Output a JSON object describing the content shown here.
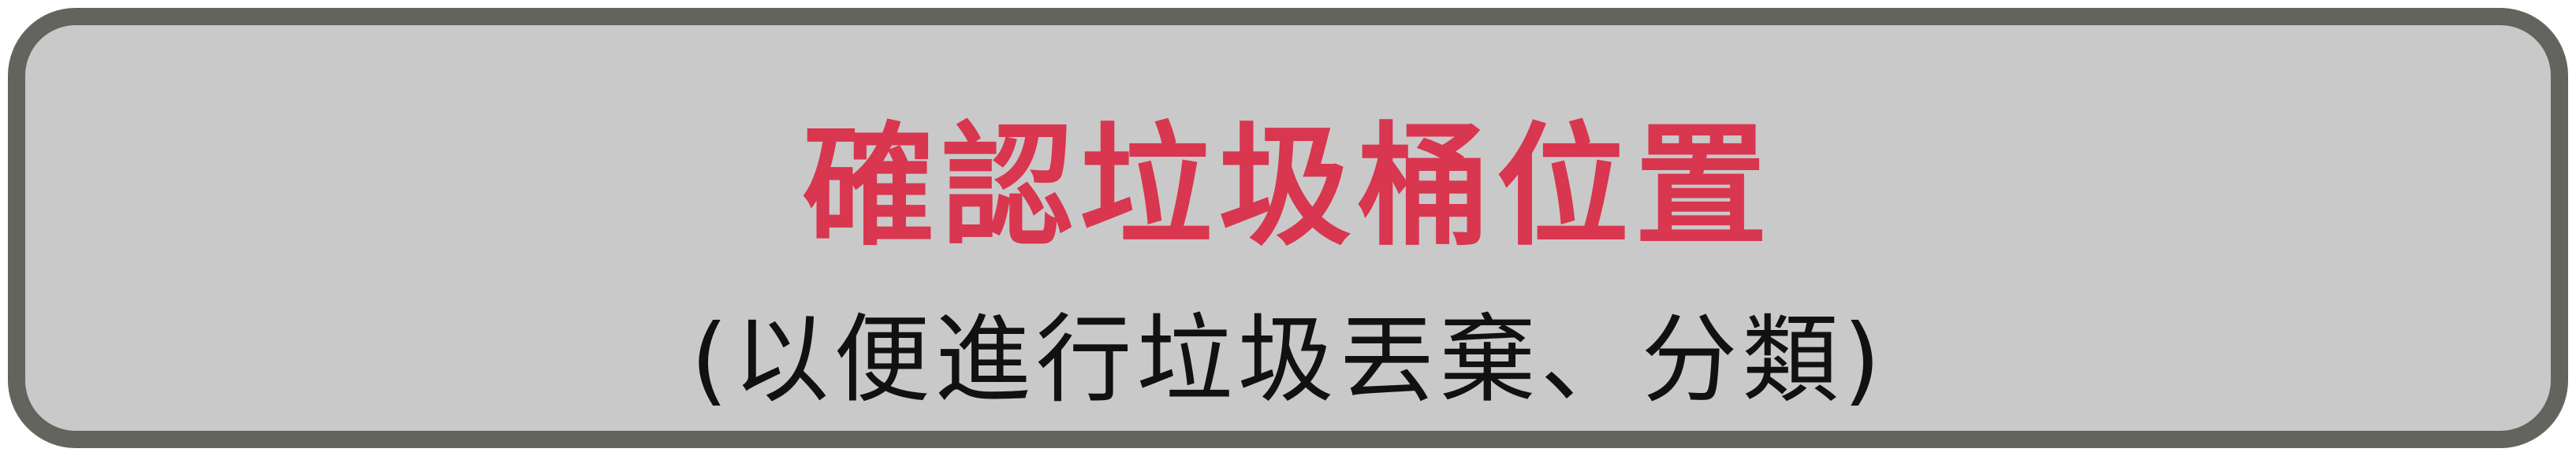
{
  "banner": {
    "title": "確認垃圾桶位置",
    "subtitle": "(以便進行垃圾丟棄、分類)"
  },
  "colors": {
    "frame": "#64645f",
    "panel": "#c9c9c9",
    "title": "#d9364f",
    "subtitle": "#111111"
  }
}
